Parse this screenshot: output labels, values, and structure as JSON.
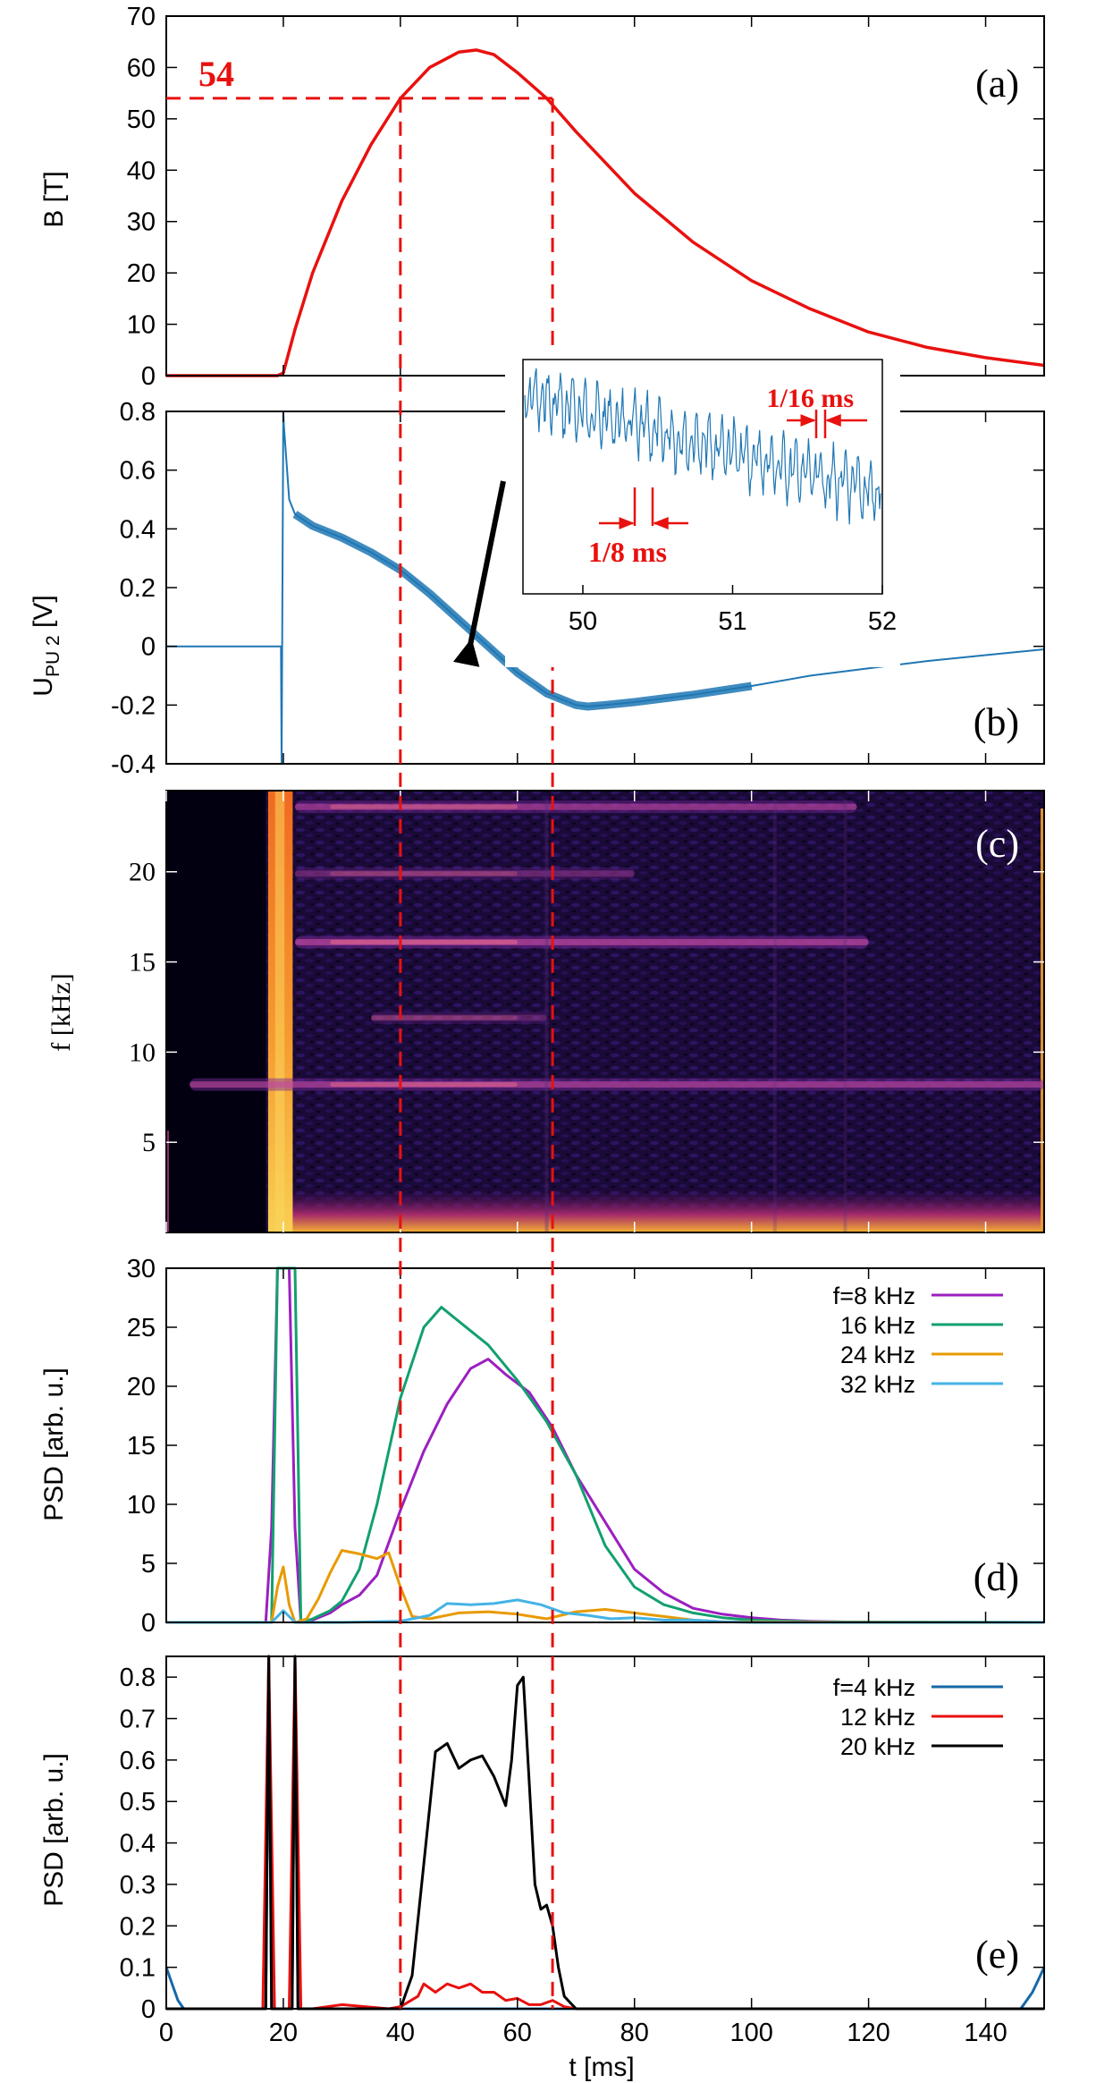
{
  "colors": {
    "panel_a_line": "#e8110f",
    "panel_b_line": "#1f77b4",
    "marker": "#e8110f",
    "f8": "#9b1fc0",
    "f16": "#12a06e",
    "f24": "#e89a00",
    "f32": "#45b3e6",
    "f4": "#1668a8",
    "f12": "#e8110f",
    "f20": "#000000",
    "spectrogram_bg": "#020010"
  },
  "x_axis": {
    "label": "t [ms]",
    "range": [
      0,
      150
    ],
    "ticks": [
      0,
      20,
      40,
      60,
      80,
      100,
      120,
      140
    ]
  },
  "markers": {
    "field_level": 54,
    "field_label": "54",
    "t_start": 40,
    "t_end": 66
  },
  "panels": {
    "a": {
      "label": "(a)",
      "ylabel": "B [T]"
    },
    "b": {
      "label": "(b)",
      "ylabel_main": "U",
      "ylabel_sub": "PU 2",
      "ylabel_unit": " [V]"
    },
    "c": {
      "label": "(c)",
      "ylabel": "f [kHz]"
    },
    "d": {
      "label": "(d)",
      "ylabel": "PSD [arb. u.]"
    },
    "e": {
      "label": "(e)",
      "ylabel": "PSD [arb. u.]"
    }
  },
  "inset": {
    "xticks": [
      "50",
      "51",
      "52"
    ],
    "xrange": [
      49.6,
      52
    ],
    "annotation_short": "1/16 ms",
    "annotation_long": "1/8 ms"
  },
  "chart_data": [
    {
      "id": "a",
      "type": "line",
      "xlabel": "",
      "ylabel": "B [T]",
      "xlim": [
        0,
        150
      ],
      "ylim": [
        0,
        70
      ],
      "yticks": [
        0,
        10,
        20,
        30,
        40,
        50,
        60,
        70
      ],
      "series": [
        {
          "x": [
            0,
            19,
            20,
            22,
            25,
            30,
            35,
            40,
            45,
            50,
            53,
            56,
            60,
            65,
            70,
            80,
            90,
            100,
            110,
            120,
            130,
            140,
            150
          ],
          "y": [
            0,
            0,
            0.5,
            9,
            20,
            34,
            45,
            54,
            60,
            63,
            63.4,
            62.5,
            59,
            54,
            47.5,
            35.5,
            26,
            18.5,
            13,
            8.5,
            5.5,
            3.5,
            2
          ]
        }
      ]
    },
    {
      "id": "b",
      "type": "line",
      "xlabel": "",
      "ylabel": "U PU 2 [V]",
      "xlim": [
        0,
        150
      ],
      "ylim": [
        -0.4,
        0.8
      ],
      "yticks": [
        -0.4,
        -0.2,
        0,
        0.2,
        0.4,
        0.6,
        0.8
      ],
      "series": [
        {
          "x": [
            0,
            19.6,
            19.7,
            20,
            20.1,
            21,
            22,
            25,
            30,
            35,
            40,
            45,
            50,
            55,
            60,
            65,
            70,
            72,
            75,
            80,
            90,
            100,
            110,
            120,
            130,
            140,
            150
          ],
          "y": [
            0,
            0,
            -0.4,
            0.8,
            0.75,
            0.5,
            0.45,
            0.41,
            0.37,
            0.32,
            0.26,
            0.18,
            0.09,
            0,
            -0.09,
            -0.16,
            -0.2,
            -0.205,
            -0.2,
            -0.19,
            -0.165,
            -0.135,
            -0.1,
            -0.075,
            -0.05,
            -0.03,
            -0.01
          ]
        }
      ]
    },
    {
      "id": "c",
      "type": "heatmap",
      "xlabel": "",
      "ylabel": "f [kHz]",
      "xlim": [
        0,
        150
      ],
      "ylim": [
        0,
        24.5
      ],
      "yticks": [
        5,
        10,
        15,
        20
      ],
      "lines": [
        {
          "f": 8.2,
          "t_start": 4,
          "t_end": 150,
          "strength": 0.6
        },
        {
          "f": 16.1,
          "t_start": 22,
          "t_end": 120,
          "strength": 0.65
        },
        {
          "f": 23.6,
          "t_start": 22,
          "t_end": 118,
          "strength": 0.55
        },
        {
          "f": 19.9,
          "t_start": 22,
          "t_end": 80,
          "strength": 0.35
        },
        {
          "f": 11.9,
          "t_start": 35,
          "t_end": 65,
          "strength": 0.3
        }
      ]
    },
    {
      "id": "d",
      "type": "line",
      "xlabel": "",
      "ylabel": "PSD [arb. u.]",
      "xlim": [
        0,
        150
      ],
      "ylim": [
        0,
        30
      ],
      "yticks": [
        0,
        5,
        10,
        15,
        20,
        25,
        30
      ],
      "legend_position": "top-right",
      "series": [
        {
          "name": "f=8 kHz",
          "x": [
            0,
            17,
            18,
            19,
            20,
            21,
            22,
            23,
            25,
            28,
            30,
            33,
            36,
            40,
            44,
            48,
            52,
            55,
            58,
            62,
            66,
            70,
            75,
            80,
            85,
            90,
            95,
            100,
            105,
            110,
            120,
            150
          ],
          "y": [
            0,
            0,
            8,
            30,
            30,
            30,
            8,
            0,
            0.2,
            0.8,
            1.5,
            2.3,
            4,
            9.5,
            14.5,
            18.5,
            21.5,
            22.3,
            21,
            19.5,
            16.5,
            12.5,
            8.5,
            4.5,
            2.5,
            1.2,
            0.7,
            0.4,
            0.2,
            0.1,
            0,
            0
          ]
        },
        {
          "name": "16 kHz",
          "x": [
            0,
            18,
            19,
            20,
            21,
            22,
            23,
            25,
            28,
            30,
            33,
            36,
            40,
            44,
            47,
            50,
            55,
            60,
            65,
            70,
            75,
            80,
            85,
            90,
            95,
            100,
            110,
            150
          ],
          "y": [
            0,
            0,
            30,
            30,
            30,
            30,
            0,
            0.3,
            1,
            1.8,
            4.5,
            10,
            19,
            25,
            26.7,
            25.5,
            23.5,
            20.5,
            17,
            12.5,
            6.5,
            3,
            1.5,
            0.8,
            0.4,
            0.2,
            0.05,
            0
          ]
        },
        {
          "name": "24 kHz",
          "x": [
            0,
            18,
            19,
            20,
            21,
            22,
            24,
            26,
            28,
            30,
            33,
            36,
            38,
            40,
            42,
            45,
            50,
            55,
            60,
            65,
            70,
            75,
            80,
            85,
            90,
            95,
            150
          ],
          "y": [
            0,
            0,
            3,
            4.7,
            1.5,
            0,
            0.3,
            2,
            4.2,
            6.1,
            5.8,
            5.4,
            5.9,
            3,
            0.5,
            0.3,
            0.8,
            0.9,
            0.7,
            0.3,
            0.9,
            1.1,
            0.8,
            0.5,
            0.2,
            0.05,
            0
          ]
        },
        {
          "name": "32 kHz",
          "x": [
            0,
            18,
            20,
            22,
            30,
            40,
            45,
            48,
            52,
            56,
            60,
            64,
            68,
            72,
            76,
            80,
            85,
            90,
            95,
            100,
            150
          ],
          "y": [
            0,
            0,
            1,
            0,
            0,
            0.1,
            0.6,
            1.6,
            1.5,
            1.6,
            1.9,
            1.5,
            0.8,
            0.6,
            0.3,
            0.4,
            0.2,
            0.2,
            0.05,
            0,
            0
          ]
        }
      ]
    },
    {
      "id": "e",
      "type": "line",
      "xlabel": "t [ms]",
      "ylabel": "PSD [arb. u.]",
      "xlim": [
        0,
        150
      ],
      "ylim": [
        0,
        0.85
      ],
      "yticks": [
        0,
        0.1,
        0.2,
        0.3,
        0.4,
        0.5,
        0.6,
        0.7,
        0.8
      ],
      "legend_position": "top-right",
      "series": [
        {
          "name": "f=4 kHz",
          "x": [
            0,
            1,
            2,
            3,
            17,
            17.5,
            18,
            21.5,
            22,
            22.5,
            30,
            100,
            146,
            147,
            148,
            149,
            150
          ],
          "y": [
            0.1,
            0.06,
            0.02,
            0,
            0,
            0.85,
            0,
            0,
            0.85,
            0,
            0,
            0,
            0,
            0.02,
            0.04,
            0.07,
            0.1
          ]
        },
        {
          "name": "12 kHz",
          "x": [
            0,
            16.5,
            17.5,
            18.5,
            21,
            22,
            23,
            25,
            30,
            38,
            40,
            43,
            44,
            46,
            48,
            50,
            52,
            54,
            56,
            58,
            60,
            62,
            64,
            66,
            68,
            70,
            80,
            150
          ],
          "y": [
            0,
            0,
            0.85,
            0,
            0,
            0.85,
            0,
            0,
            0.01,
            0,
            0.005,
            0.03,
            0.06,
            0.04,
            0.06,
            0.05,
            0.06,
            0.04,
            0.04,
            0.02,
            0.025,
            0.01,
            0.01,
            0.02,
            0.005,
            0,
            0,
            0
          ]
        },
        {
          "name": "20 kHz",
          "x": [
            0,
            17,
            17.5,
            18,
            21.5,
            22,
            22.5,
            30,
            40,
            42,
            44,
            46,
            48,
            50,
            52,
            54,
            56,
            58,
            59,
            60,
            61,
            62,
            63,
            64,
            65,
            66,
            67,
            68,
            70,
            80,
            150
          ],
          "y": [
            0,
            0,
            0.85,
            0,
            0,
            0.85,
            0,
            0,
            0,
            0.08,
            0.35,
            0.62,
            0.64,
            0.58,
            0.6,
            0.61,
            0.56,
            0.49,
            0.6,
            0.78,
            0.8,
            0.55,
            0.3,
            0.24,
            0.25,
            0.2,
            0.1,
            0.03,
            0,
            0,
            0
          ]
        }
      ]
    }
  ]
}
